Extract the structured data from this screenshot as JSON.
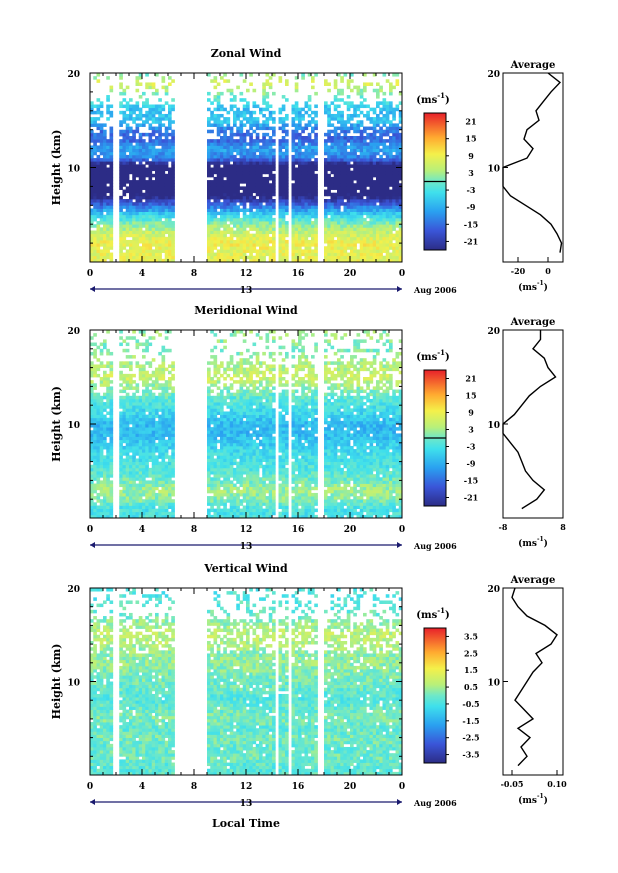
{
  "chart_data": [
    {
      "type": "heatmap",
      "title": "Zonal Wind",
      "ylabel": "Height (km)",
      "ylim": [
        0,
        20
      ],
      "yticks": [
        "0",
        "10",
        "20"
      ],
      "xticks": [
        "0",
        "4",
        "8",
        "12",
        "16",
        "20",
        "0"
      ],
      "xlim": [
        0,
        24
      ],
      "date_day": "13",
      "date_label": "Aug 2006",
      "colorbar": {
        "unit": "(ms-1)",
        "ticks": [
          "21",
          "15",
          "9",
          "3",
          "-3",
          "-9",
          "-15",
          "-21"
        ],
        "range": [
          -24,
          24
        ],
        "marked_level": 0
      },
      "average": {
        "title": "Average",
        "xlabel": "(ms-1)",
        "xticks": [
          "-20",
          "0"
        ],
        "xlim": [
          -30,
          10
        ],
        "yticks": [
          "0",
          "10",
          "20"
        ],
        "profile_km": [
          1,
          2,
          3,
          4,
          5,
          6,
          7,
          8,
          9,
          10,
          11,
          12,
          13,
          14,
          15,
          16,
          17,
          18,
          19,
          20
        ],
        "profile_value": [
          8,
          9,
          6,
          2,
          -5,
          -15,
          -25,
          -30,
          -32,
          -30,
          -14,
          -10,
          -16,
          -14,
          -6,
          -8,
          -3,
          2,
          8,
          0
        ]
      },
      "data_gaps_hours": [
        [
          1.8,
          2.2
        ],
        [
          6.6,
          9.0
        ],
        [
          14.2,
          14.6
        ],
        [
          15.2,
          15.6
        ],
        [
          17.6,
          18.0
        ]
      ]
    },
    {
      "type": "heatmap",
      "title": "Meridional Wind",
      "ylabel": "Height (km)",
      "ylim": [
        0,
        20
      ],
      "yticks": [
        "0",
        "10",
        "20"
      ],
      "xticks": [
        "0",
        "4",
        "8",
        "12",
        "16",
        "20",
        "0"
      ],
      "xlim": [
        0,
        24
      ],
      "date_day": "13",
      "date_label": "Aug 2006",
      "colorbar": {
        "unit": "(ms-1)",
        "ticks": [
          "21",
          "15",
          "9",
          "3",
          "-3",
          "-9",
          "-15",
          "-21"
        ],
        "range": [
          -24,
          24
        ],
        "marked_level": 0
      },
      "average": {
        "title": "Average",
        "xlabel": "(ms-1)",
        "xticks": [
          "-8",
          "8"
        ],
        "xlim": [
          -8,
          8
        ],
        "yticks": [
          "0",
          "10",
          "20"
        ],
        "profile_km": [
          1,
          2,
          3,
          4,
          5,
          6,
          7,
          8,
          9,
          10,
          11,
          12,
          13,
          14,
          15,
          16,
          17,
          18,
          19,
          20
        ],
        "profile_value": [
          -3,
          1,
          3,
          0,
          -2,
          -3,
          -4,
          -6,
          -8,
          -8,
          -5,
          -3,
          -1,
          2,
          6,
          4,
          3,
          0,
          2,
          2
        ]
      },
      "data_gaps_hours": [
        [
          1.8,
          2.2
        ],
        [
          6.6,
          9.0
        ],
        [
          14.2,
          14.6
        ],
        [
          15.2,
          15.6
        ],
        [
          17.6,
          18.0
        ]
      ]
    },
    {
      "type": "heatmap",
      "title": "Vertical Wind",
      "ylabel": "Height (km)",
      "xlabel": "Local Time",
      "ylim": [
        0,
        20
      ],
      "yticks": [
        "0",
        "10",
        "20"
      ],
      "xticks": [
        "0",
        "4",
        "8",
        "12",
        "16",
        "20",
        "0"
      ],
      "xlim": [
        0,
        24
      ],
      "date_day": "13",
      "date_label": "Aug 2006",
      "colorbar": {
        "unit": "(ms-1)",
        "ticks": [
          "3.5",
          "2.5",
          "1.5",
          "0.5",
          "-0.5",
          "-1.5",
          "-2.5",
          "-3.5"
        ],
        "range": [
          -4,
          4
        ]
      },
      "average": {
        "title": "Average",
        "xlabel": "(ms-1)",
        "xticks": [
          "-0.05",
          "0.10"
        ],
        "xlim": [
          -0.08,
          0.12
        ],
        "yticks": [
          "0",
          "10",
          "20"
        ],
        "profile_km": [
          1,
          2,
          3,
          4,
          5,
          6,
          7,
          8,
          9,
          10,
          11,
          12,
          13,
          14,
          15,
          16,
          17,
          18,
          19,
          20
        ],
        "profile_value": [
          -0.03,
          0.0,
          -0.02,
          0.01,
          -0.03,
          0.02,
          -0.01,
          -0.04,
          -0.02,
          0.0,
          0.02,
          0.05,
          0.03,
          0.08,
          0.1,
          0.06,
          0.0,
          -0.03,
          -0.05,
          -0.04
        ]
      },
      "data_gaps_hours": [
        [
          1.8,
          2.2
        ],
        [
          6.6,
          9.0
        ],
        [
          14.2,
          14.6
        ],
        [
          15.2,
          15.6
        ],
        [
          17.6,
          18.0
        ]
      ]
    }
  ]
}
